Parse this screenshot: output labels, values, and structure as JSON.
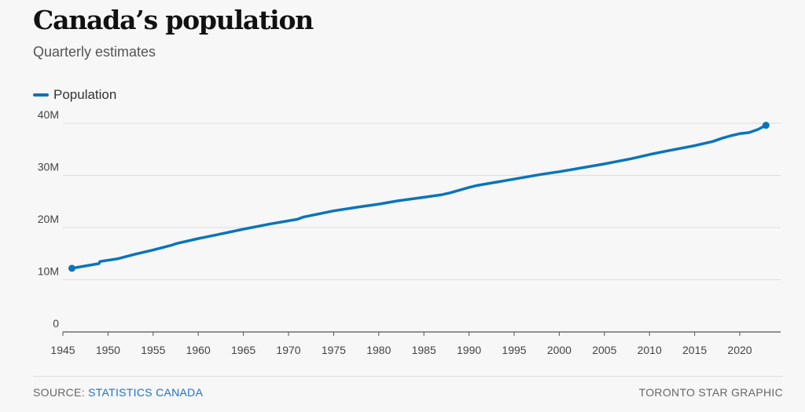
{
  "header": {
    "title": "Canada’s population",
    "subtitle": "Quarterly estimates"
  },
  "footer": {
    "source_prefix": "SOURCE: ",
    "source_link": "STATISTICS CANADA",
    "credit": "TORONTO STAR GRAPHIC"
  },
  "colors": {
    "series": "#0a74bb",
    "source_link": "#1a73c9",
    "grid": "#dddddd",
    "background": "#f7f7f7"
  },
  "chart_data": {
    "type": "line",
    "title": "Canada’s population",
    "subtitle": "Quarterly estimates",
    "xlabel": "",
    "ylabel": "",
    "xlim": [
      1945,
      2023.5
    ],
    "ylim": [
      0,
      40000000
    ],
    "x_ticks": [
      1945,
      1950,
      1955,
      1960,
      1965,
      1970,
      1975,
      1980,
      1985,
      1990,
      1995,
      2000,
      2005,
      2010,
      2015,
      2020
    ],
    "x_tick_labels": [
      "1945",
      "1950",
      "1955",
      "1960",
      "1965",
      "1970",
      "1975",
      "1980",
      "1985",
      "1990",
      "1995",
      "2000",
      "2005",
      "2010",
      "2015",
      "2020"
    ],
    "y_ticks": [
      0,
      10000000,
      20000000,
      30000000,
      40000000
    ],
    "y_tick_labels": [
      "0",
      "10M",
      "20M",
      "30M",
      "40M"
    ],
    "grid": true,
    "legend": "top-left",
    "endpoint_markers": true,
    "series": [
      {
        "name": "Population",
        "color": "#0a74bb",
        "x": [
          1946,
          1948,
          1949,
          1949.1,
          1951,
          1953,
          1955,
          1957,
          1957.5,
          1960,
          1962,
          1965,
          1968,
          1971,
          1971.6,
          1975,
          1978,
          1980,
          1982,
          1985,
          1987,
          1988,
          1990,
          1991,
          1995,
          1998,
          2000,
          2003,
          2005,
          2008,
          2010,
          2012,
          2015,
          2016,
          2017,
          2018,
          2019,
          2020,
          2021,
          2022,
          2022.9
        ],
        "y": [
          12200000,
          12800000,
          13100000,
          13500000,
          14000000,
          14900000,
          15700000,
          16600000,
          16900000,
          17900000,
          18600000,
          19700000,
          20700000,
          21600000,
          22000000,
          23200000,
          24000000,
          24500000,
          25100000,
          25800000,
          26300000,
          26700000,
          27700000,
          28100000,
          29300000,
          30200000,
          30700000,
          31600000,
          32200000,
          33200000,
          34000000,
          34700000,
          35700000,
          36100000,
          36500000,
          37100000,
          37600000,
          38000000,
          38200000,
          38800000,
          39600000
        ]
      }
    ]
  }
}
